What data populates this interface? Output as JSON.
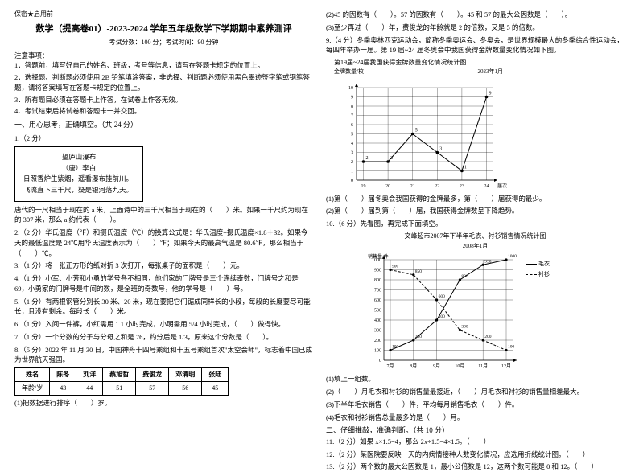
{
  "left": {
    "confidential": "保密★启用前",
    "title": "数学（提高卷01）-2023-2024 学年五年级数学下学期期中素养测评",
    "examinfo": "考试分数：100 分；考试时间：90 分钟",
    "notice_h": "注意事项：",
    "notices": [
      "1．答题前，填写好自己的姓名、班级，考号等信息，请写在答题卡规定的位置上。",
      "2．选择题、判断题必须使用 2B 铅笔填涂答案，非选择、判断题必须使用黑色墨迹签字笔或钢笔答题，请将答案填写在答题卡规定的位置上。",
      "3．所有题目必须在答题卡上作答，在试卷上作答无效。",
      "4．考试结束后将试卷和答题卡一并交回。"
    ],
    "section1": "一、用心思考，正确填空。（共 24 分）",
    "q1_h": "1.（2 分）",
    "poem": {
      "t": "望庐山瀑布",
      "a": "（唐）李白",
      "l1": "日照香炉生紫烟，遥看瀑布挂前川。",
      "l2": "飞流直下三千尺，疑是银河落九天。"
    },
    "q1_txt": "唐代的一尺相当于现在的 a 米，上面诗中的三千尺相当于现在的（　　）米。如果一千尺约为现在的 307 米，那么 a 约代表（　　）。",
    "q2": "2.（2 分）华氏温度（℉）和摄氏温度（℃）的换算公式是：华氏温度=摄氏温度×1.8＋32。如果今天的最低温度是 24℃用华氏温度表示为（　　）℉；如果今天的最高气温是 80.6℉，那么相当于（　　）℃。",
    "q3": "3.（1 分）将一张正方形的纸对折 3 次打开，每张桌子的面积是（　　）元。",
    "q4": "4.（1 分）小军、小芳和小勇的学号各不相同，他们家的门牌号是三个连续奇数，门牌号之和是 69，小勇家的门牌号是中间的数，是全班的奇数号，他的学号是（　　）号。",
    "q5": "5.（1 分）有两根钢管分别长 30 米、20 米，现在要把它们锯成同样长的小段，每段的长度要尽可能长，且没有剩余。每段长（　　）米。",
    "q6": "6.（1 分）入间一件裤，小红需用 1.1 小时完成，小明需用 5/4 小时完成，（　　）做得快。",
    "q7": "7.（1 分）一个分数的分子与分母之和是 76，约分后是 1/3，原来这个分数是（　　）。",
    "q8": "8.（5 分）2022 年 11 月 30 日，中国神舟十四号乘组和十五号乘组首次\"太空会师\"，标志着中国已成为世界航天强国。",
    "ages": {
      "h": [
        "姓名",
        "陈冬",
        "刘洋",
        "蔡旭哲",
        "费俊龙",
        "邓清明",
        "张陆"
      ],
      "r": [
        "年龄/岁",
        "43",
        "44",
        "51",
        "57",
        "56",
        "45"
      ]
    },
    "q8b": "(1)把数据进行排序（　　）岁。"
  },
  "right": {
    "q8c": "(2)45 的因数有（　　）。57 的因数有（　　）。45 和 57 的最大公因数是（　　）。",
    "q8d": "(3)至少再过（　　）年，费俊龙的年龄就是 2 的倍数，又是 5 的倍数。",
    "q9": "9.（4 分）冬季奥林匹克运动会，简称冬季奥运会、冬奥会，是世界规模最大的冬季综合性运动会，每四年举办一届。第 19 届~24 届冬奥会中我国获得金牌数量变化情况如下图。",
    "chart1": {
      "title": "第19届~24届我国获得金牌数量变化情况统计图",
      "ylabel": "金牌数量/枚",
      "date": "2023年1月",
      "xlabel": "届次",
      "xticks": [
        "19",
        "20",
        "21",
        "22",
        "23",
        "24"
      ],
      "yticks": [
        "0",
        "1",
        "2",
        "3",
        "4",
        "5",
        "6",
        "7",
        "8",
        "9",
        "10"
      ],
      "values": [
        2,
        2,
        5,
        3,
        1,
        9
      ],
      "line_color": "#000000",
      "grid_color": "#000000",
      "background": "#ffffff"
    },
    "q9a": "(1)第（　　）届冬奥会我国获得的金牌最多，第（　　）届获得的最少。",
    "q9b": "(2)第（　　）届到第（　　）届，我国获得金牌数呈下降趋势。",
    "q10": "10.（6 分）先看图，再完成下面填空。",
    "chart2": {
      "title": "文峰超市2007年下半年毛衣、衬衫销售情况统计图",
      "sub": "2008年1月",
      "ylabel": "销售量/件",
      "legend": [
        "毛衣",
        "衬衫"
      ],
      "legend_colors": [
        "#000000",
        "#000000"
      ],
      "legend_dash": [
        "solid",
        "dashed"
      ],
      "xticks": [
        "7月",
        "8月",
        "9月",
        "10月",
        "11月",
        "12月"
      ],
      "yticks": [
        "0",
        "100",
        "200",
        "300",
        "400",
        "500",
        "600",
        "700",
        "800",
        "900",
        "1000"
      ],
      "series1": [
        100,
        200,
        400,
        800,
        950,
        1000
      ],
      "series2": [
        900,
        850,
        600,
        300,
        200,
        100
      ],
      "labels1": [
        "100",
        "200",
        "400",
        "800",
        "950",
        "1000"
      ],
      "labels2": [
        "900",
        "850",
        "600",
        "300",
        "200",
        "100"
      ],
      "grid_color": "#000000"
    },
    "q10a": "(1)填上一组数。",
    "q10b": "(2)（　　）月毛衣和衬衫的销售量最接近，（　　）月毛衣和衬衫的销售量相差最大。",
    "q10c": "(3)下半年毛衣销售（　　）件，平均每月销售毛衣（　　）件。",
    "q10d": "(4)毛衣和衬衫销售总量最多的是（　　）月。",
    "section2": "二、仔细推敲，准确判断。（共 10 分）",
    "q11": "11.（2 分）如果 x×1.5=4，那么 2x÷1.5=4×1.5。（　　）",
    "q12": "12.（2 分）某医院要反映一天的内病情接种人数变化情况，应选用折线统计图。（　　）",
    "q13": "13.（2 分）两个数的最大公因数是 1，最小公倍数是 12，这两个数可能是 0 和 12。（　　）"
  }
}
